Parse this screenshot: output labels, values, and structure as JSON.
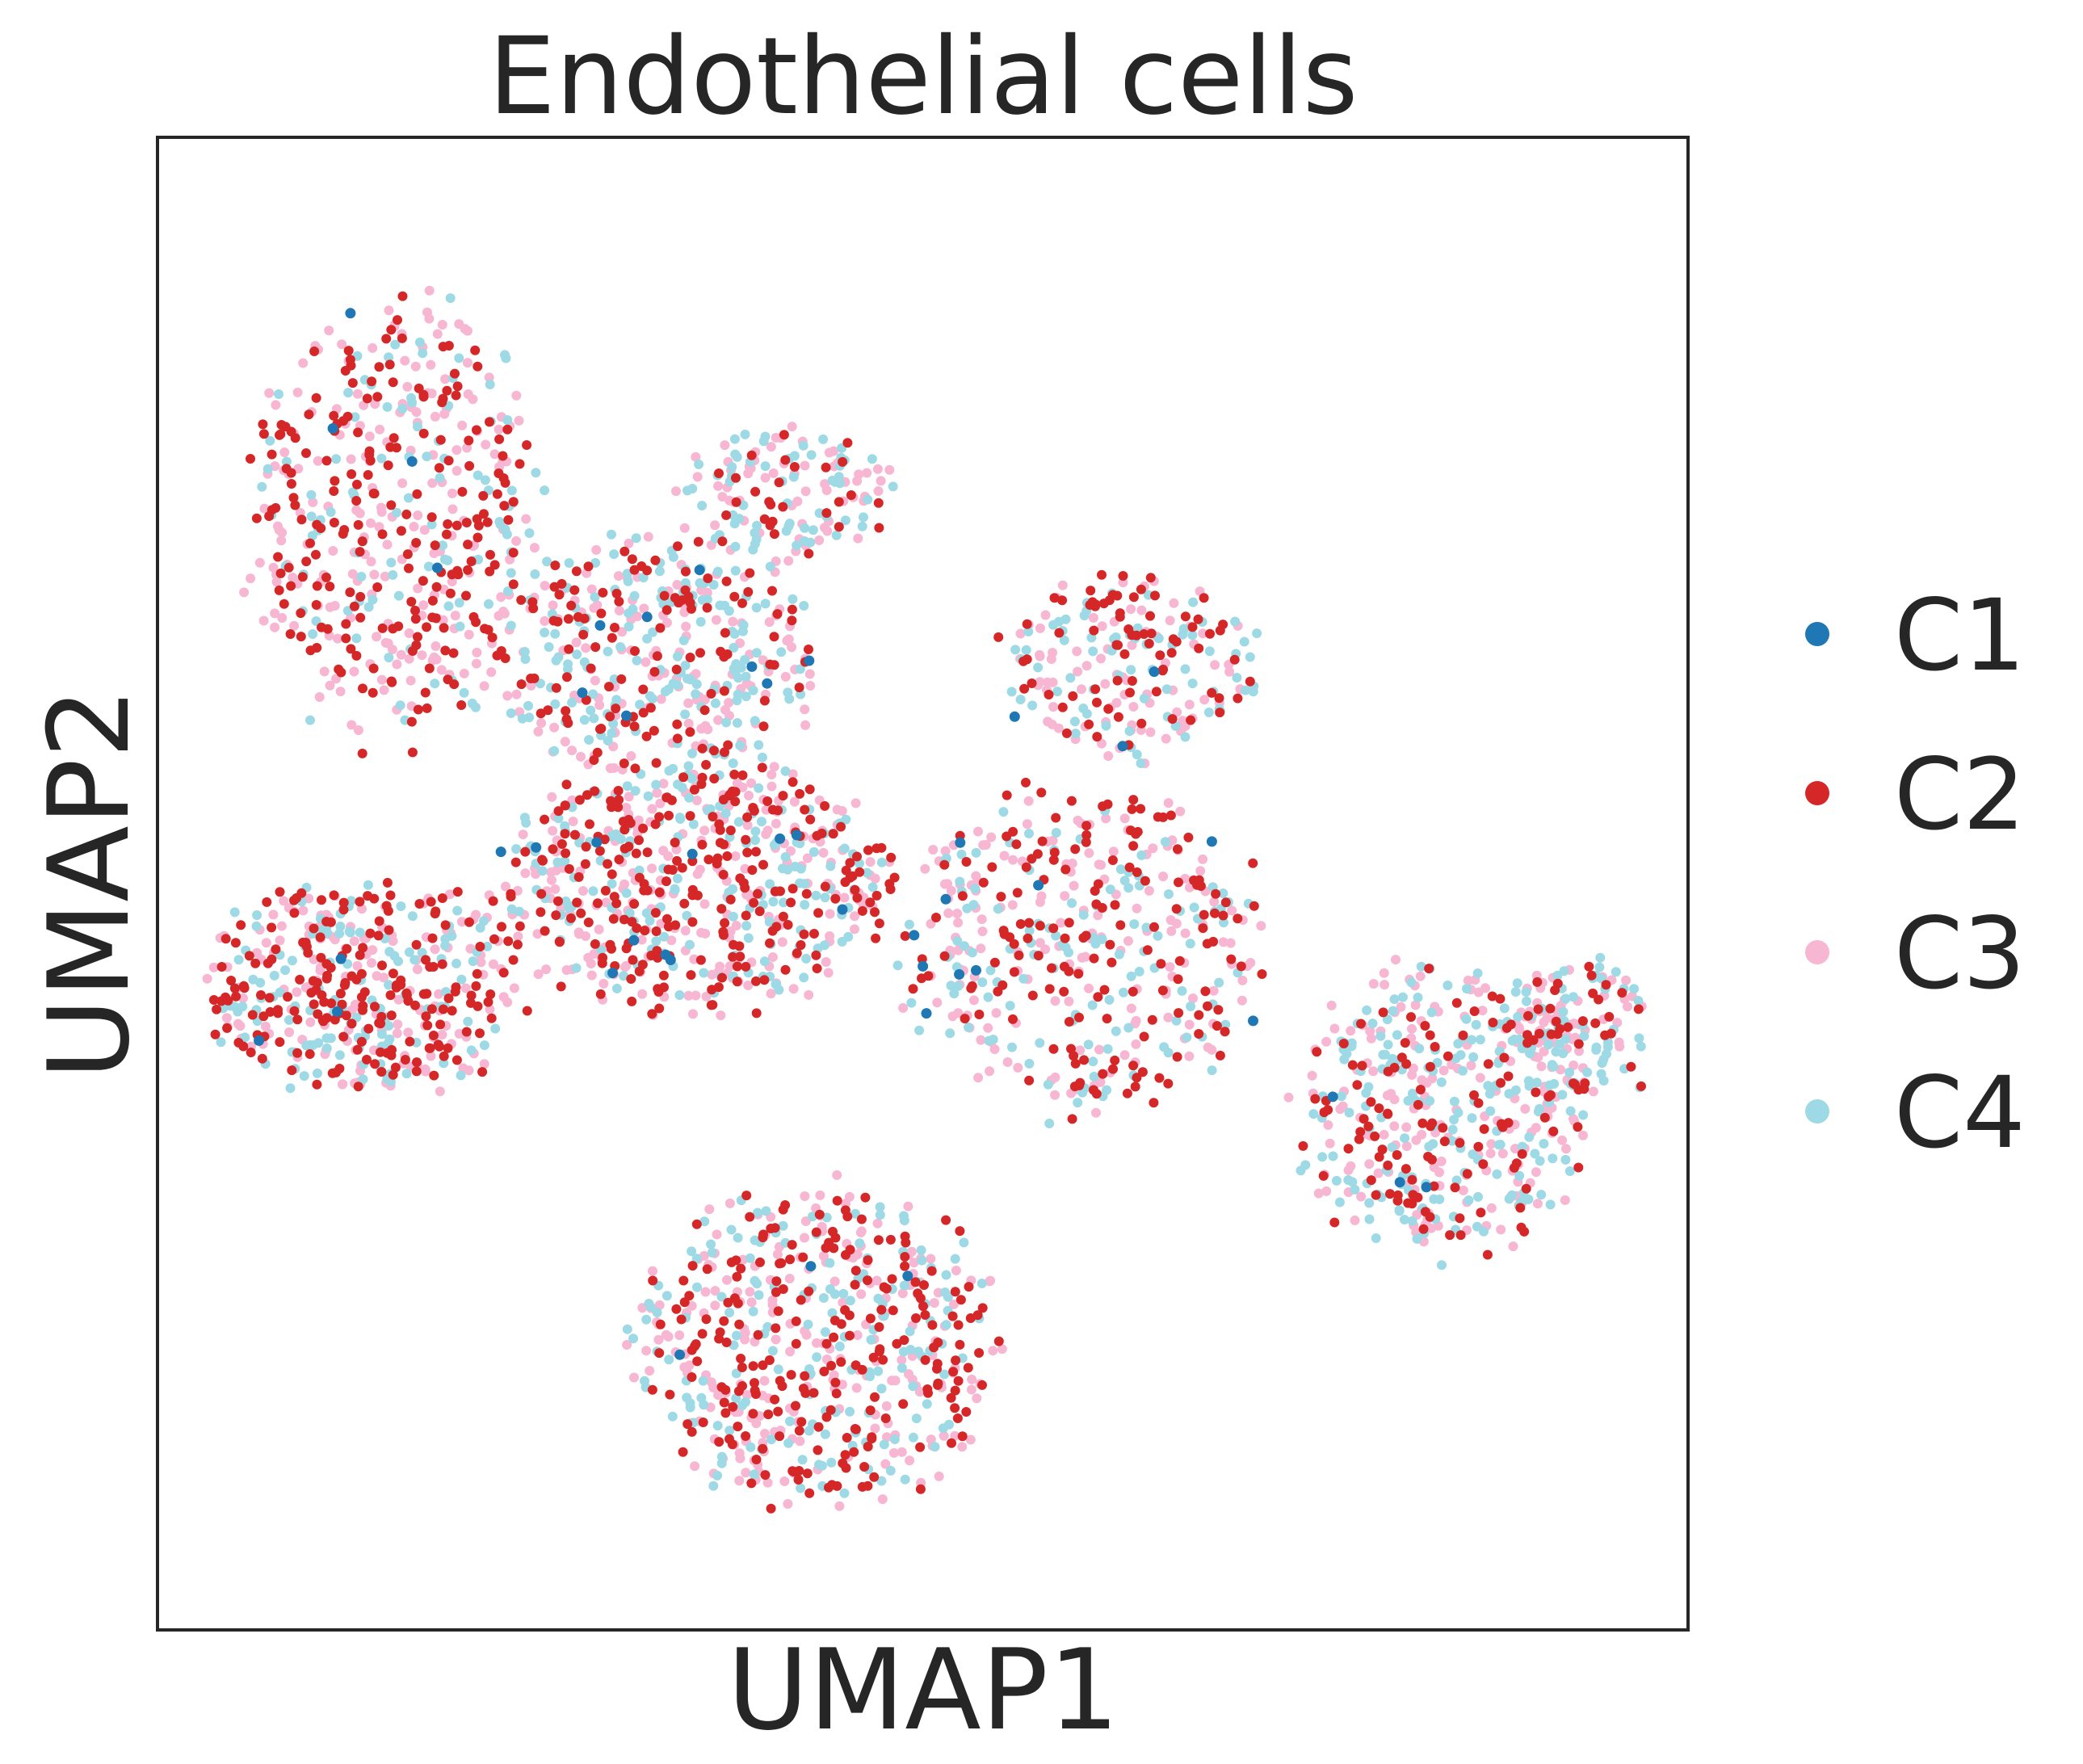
{
  "chart_data": {
    "type": "scatter",
    "title": "Endothelial cells",
    "xlabel": "UMAP1",
    "ylabel": "UMAP2",
    "xlim": [
      0,
      100
    ],
    "ylim": [
      0,
      100
    ],
    "xticks": [],
    "yticks": [],
    "grid": false,
    "legend_position": "right",
    "series": [
      {
        "name": "C1",
        "color": "#1f77b4"
      },
      {
        "name": "C2",
        "color": "#d62728"
      },
      {
        "name": "C3",
        "color": "#f7b6d2"
      },
      {
        "name": "C4",
        "color": "#9edae5"
      }
    ],
    "clusters": [
      {
        "cx": 15.5,
        "cy": 74.5,
        "rx": 10.5,
        "ry": 16.5,
        "n": 520,
        "mix": [
          0.01,
          0.38,
          0.38,
          0.23
        ]
      },
      {
        "cx": 32.5,
        "cy": 65.0,
        "rx": 12.0,
        "ry": 9.0,
        "n": 420,
        "mix": [
          0.01,
          0.28,
          0.32,
          0.39
        ]
      },
      {
        "cx": 35.0,
        "cy": 50.0,
        "rx": 14.0,
        "ry": 9.5,
        "n": 650,
        "mix": [
          0.02,
          0.4,
          0.33,
          0.25
        ]
      },
      {
        "cx": 13.5,
        "cy": 43.0,
        "rx": 11.5,
        "ry": 8.0,
        "n": 480,
        "mix": [
          0.01,
          0.42,
          0.35,
          0.22
        ]
      },
      {
        "cx": 43.0,
        "cy": 19.0,
        "rx": 13.0,
        "ry": 12.0,
        "n": 620,
        "mix": [
          0.005,
          0.37,
          0.37,
          0.255
        ]
      },
      {
        "cx": 60.5,
        "cy": 45.5,
        "rx": 13.0,
        "ry": 12.0,
        "n": 460,
        "mix": [
          0.015,
          0.36,
          0.34,
          0.285
        ]
      },
      {
        "cx": 63.5,
        "cy": 64.5,
        "rx": 9.5,
        "ry": 7.0,
        "n": 230,
        "mix": [
          0.015,
          0.3,
          0.32,
          0.365
        ]
      },
      {
        "cx": 84.0,
        "cy": 35.0,
        "rx": 11.0,
        "ry": 11.0,
        "n": 470,
        "mix": [
          0.005,
          0.25,
          0.38,
          0.365
        ]
      },
      {
        "cx": 93.0,
        "cy": 40.0,
        "rx": 5.5,
        "ry": 5.5,
        "n": 140,
        "mix": [
          0.0,
          0.22,
          0.4,
          0.38
        ]
      },
      {
        "cx": 41.0,
        "cy": 76.0,
        "rx": 7.5,
        "ry": 5.0,
        "n": 150,
        "mix": [
          0.0,
          0.2,
          0.35,
          0.45
        ]
      }
    ]
  }
}
